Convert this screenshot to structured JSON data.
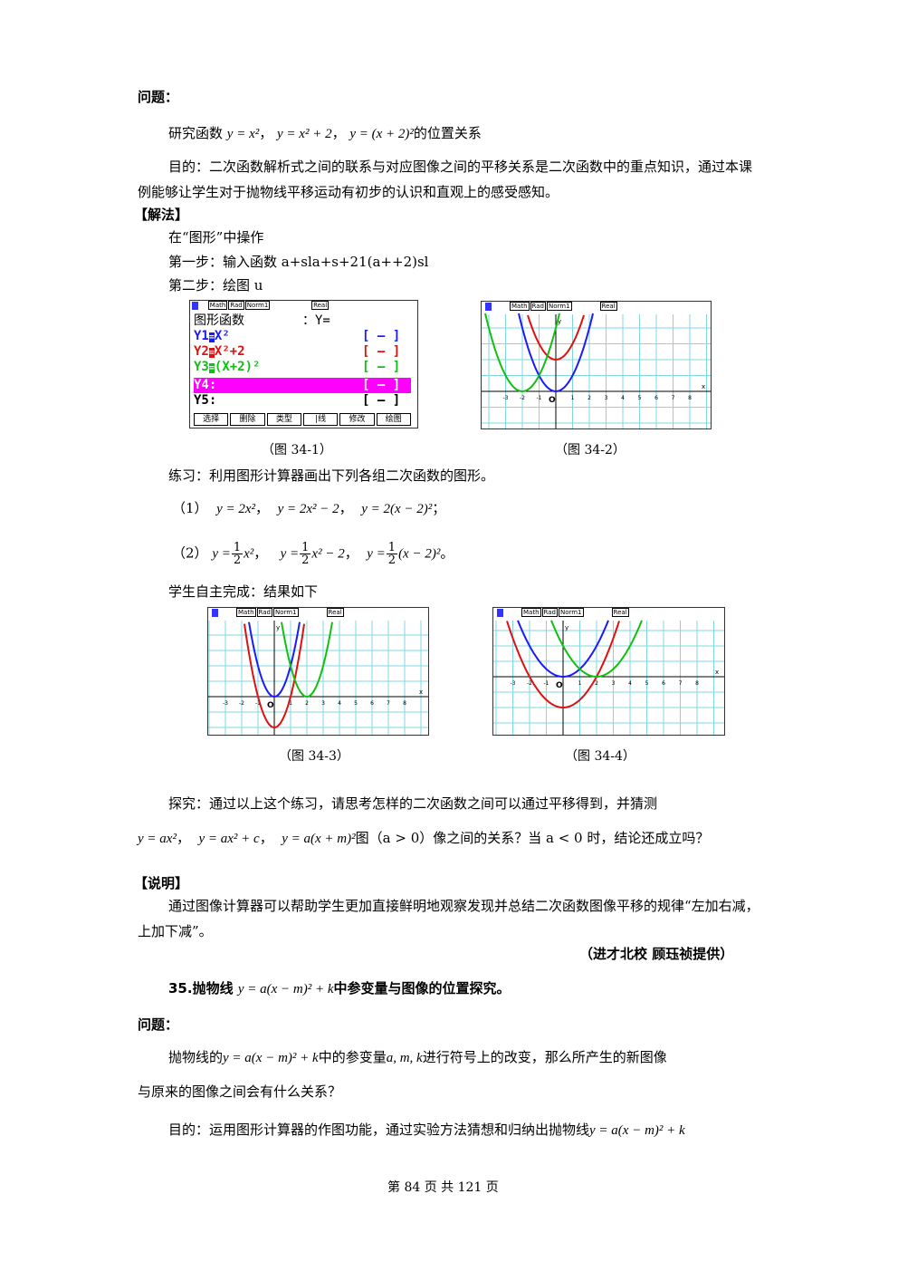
{
  "s34": {
    "question_heading": "问题：",
    "q_text": "研究函数",
    "q_f1": "y = x²",
    "q_f2": "y = x² + 2",
    "q_f3": "y = (x + 2)²",
    "q_suffix": "的位置关系",
    "purpose": "目的：二次函数解析式之间的联系与对应图像之间的平移关系是二次函数中的重点知识，通过本课例能够让学生对于抛物线平移运动有初步的认识和直观上的感受感知。",
    "method_heading": "【解法】",
    "op": "在“图形”中操作",
    "step1": "第一步：输入函数 a+sla+s+21(a++2)sl",
    "step2": "第二步：绘图 u",
    "cap1": "（图 34-1）",
    "cap2": "（图 34-2）",
    "practice": "练习：利用图形计算器画出下列各组二次函数的图形。",
    "p1_label": "（1）",
    "p1_f1": "y = 2x²",
    "p1_f2": "y = 2x² − 2",
    "p1_f3": "y = 2(x − 2)²",
    "p1_end": "；",
    "p2_label": "（2）",
    "p2_y": "y =",
    "p2_half_n": "1",
    "p2_half_d": "2",
    "p2_t1": "x²",
    "p2_t2": "x² − 2",
    "p2_t3": "(x − 2)²",
    "p2_end": "。",
    "students": "学生自主完成：结果如下",
    "cap3": "（图 34-3）",
    "cap4": "（图 34-4）",
    "explore_1": "探究：通过以上这个练习，请思考怎样的二次函数之间可以通过平移得到，并猜测",
    "explore_f1": "y = ax²",
    "explore_f2": "y = ax² + c",
    "explore_f3": "y = a(x + m)²",
    "explore_mid": "图（a > 0）像之间的关系？当 a < 0 时，结论还成立吗？",
    "note_heading": "【说明】",
    "note_text": "通过图像计算器可以帮助学生更加直接鲜明地观察发现并总结二次函数图像平移的规律“左加右减，上加下减”。",
    "credit": "（进才北校 顾珏祯提供）"
  },
  "calc_menu": {
    "status": [
      "Math",
      "Rad",
      "Norm1",
      "Real"
    ],
    "title": "图形函数",
    "title_right": "：Y=",
    "rows": [
      {
        "label": "Y1",
        "expr": "X²",
        "style": "[ — ]",
        "color": "#1a1aff"
      },
      {
        "label": "Y2",
        "expr": "X²+2",
        "style": "[ — ]",
        "color": "#e01010"
      },
      {
        "label": "Y3",
        "expr": "(X+2)²",
        "style": "[ — ]",
        "color": "#10c010"
      },
      {
        "label": "Y4",
        "expr": ":",
        "style": "[ — ]",
        "color": "#ffffff"
      },
      {
        "label": "Y5",
        "expr": ":",
        "style": "[ — ]",
        "color": "#000000"
      }
    ],
    "softkeys": [
      "选择",
      "删除",
      "类型",
      "|线",
      "修改",
      "绘图"
    ]
  },
  "graph_status": [
    "Math",
    "Rad",
    "Norm1",
    "Real"
  ],
  "s35": {
    "heading_num": "35.",
    "heading_pre": "抛物线",
    "heading_formula": "y = a(x − m)² + k",
    "heading_post": "中参变量与图像的位置探究。",
    "question_heading": "问题：",
    "q_pre": "抛物线的",
    "q_formula": "y = a(x − m)² + k",
    "q_mid": "中的参变量",
    "q_vars": "a, m, k",
    "q_post": "进行符号上的改变，那么所产生的新图像",
    "q_line2": "与原来的图像之间会有什么关系？",
    "purpose_pre": "目的：运用图形计算器的作图功能，通过实验方法猜想和归纳出抛物线",
    "purpose_formula": "y = a(x − m)² + k"
  },
  "footer": "第 84 页 共 121 页"
}
